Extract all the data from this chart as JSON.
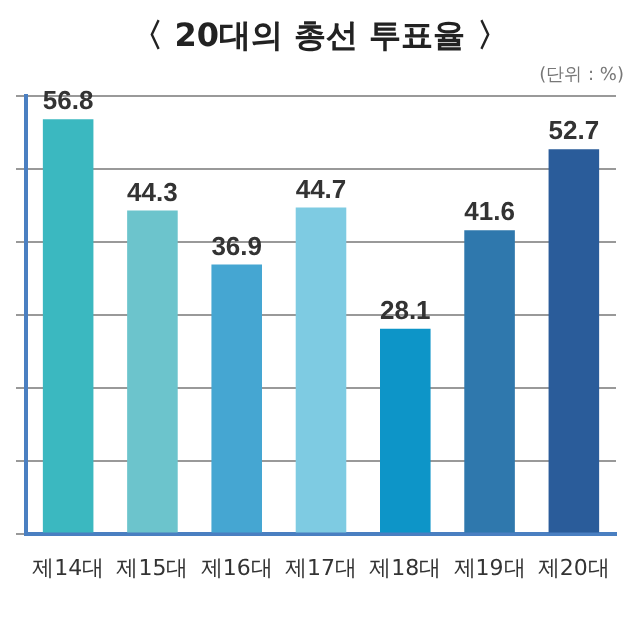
{
  "chart_data": {
    "type": "bar",
    "title": "〈 20대의 총선 투표율 〉",
    "annotations": [
      "(단위 : %)"
    ],
    "categories": [
      "제14대",
      "제15대",
      "제16대",
      "제17대",
      "제18대",
      "제19대",
      "제20대"
    ],
    "values": [
      56.8,
      44.3,
      36.9,
      44.7,
      28.1,
      41.6,
      52.7
    ],
    "colors": [
      "#3bb8c0",
      "#6cc4cc",
      "#45a6d2",
      "#7ecbe2",
      "#0d95c8",
      "#2f78ad",
      "#2a5c9a"
    ],
    "ylim": [
      0,
      60
    ],
    "yticks": [
      {
        "value": 0,
        "label": null
      },
      {
        "value": 10,
        "label": null
      },
      {
        "value": 20,
        "label": null
      },
      {
        "value": 30,
        "label": null
      },
      {
        "value": 40,
        "label": null
      },
      {
        "value": 50,
        "label": null
      },
      {
        "value": 60,
        "label": null
      }
    ],
    "tick_labels": "x",
    "grid": "y",
    "data_labels": true,
    "legend": false
  }
}
